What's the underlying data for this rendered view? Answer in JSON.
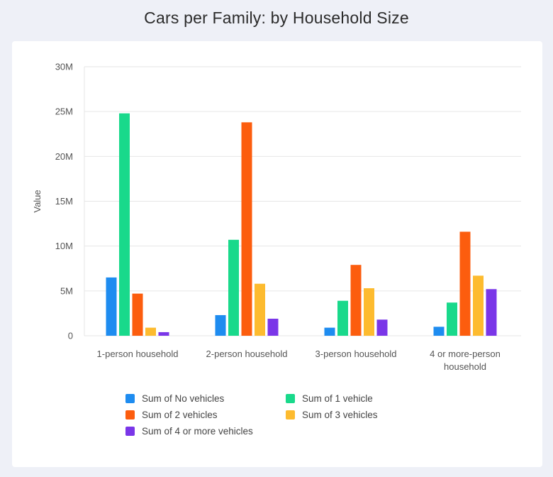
{
  "chart_data": {
    "type": "bar",
    "title": "Cars per Family: by Household Size",
    "xlabel": "",
    "ylabel": "Value",
    "ylim": [
      0,
      30000000
    ],
    "y_ticks": [
      0,
      5000000,
      10000000,
      15000000,
      20000000,
      25000000,
      30000000
    ],
    "y_tick_labels": [
      "0",
      "5M",
      "10M",
      "15M",
      "20M",
      "25M",
      "30M"
    ],
    "categories": [
      [
        "1-person household"
      ],
      [
        "2-person household"
      ],
      [
        "3-person household"
      ],
      [
        "4 or more-person",
        "household"
      ]
    ],
    "series": [
      {
        "name": "Sum of No vehicles",
        "color": "#1e8cf0",
        "values": [
          6500000,
          2300000,
          900000,
          1000000
        ]
      },
      {
        "name": "Sum of 1 vehicle",
        "color": "#19d98b",
        "values": [
          24800000,
          10700000,
          3900000,
          3700000
        ]
      },
      {
        "name": "Sum of 2 vehicles",
        "color": "#fc5d0e",
        "values": [
          4700000,
          23800000,
          7900000,
          11600000
        ]
      },
      {
        "name": "Sum of 3 vehicles",
        "color": "#fdbb2f",
        "values": [
          900000,
          5800000,
          5300000,
          6700000
        ]
      },
      {
        "name": "Sum of 4 or more vehicles",
        "color": "#7a36e8",
        "values": [
          400000,
          1900000,
          1800000,
          5200000
        ]
      }
    ],
    "grid": true,
    "legend_position": "bottom"
  }
}
